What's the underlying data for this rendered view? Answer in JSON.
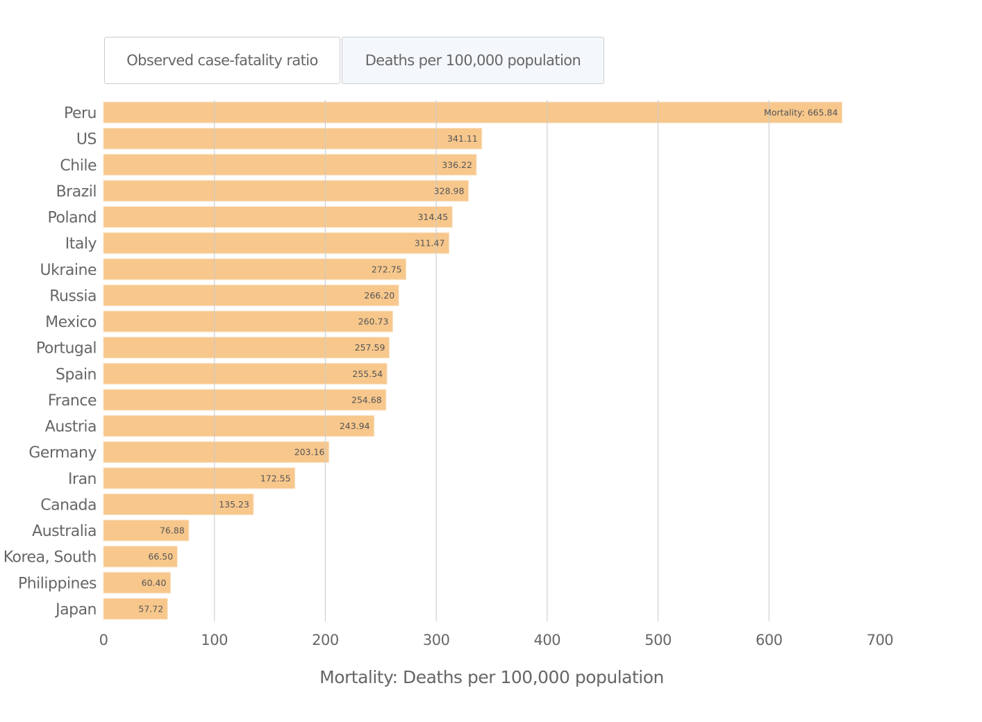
{
  "toggle": {
    "options": [
      "Observed case-fatality ratio",
      "Deaths per 100,000 population"
    ],
    "selected": "Deaths per 100,000 population"
  },
  "colors": {
    "bar": "#f7c78c",
    "bar_edge": "#fbe2c3",
    "grid": "#cccccc",
    "text": "#666666"
  },
  "chart_data": {
    "type": "bar",
    "orientation": "horizontal",
    "title": "",
    "xlabel": "Mortality: Deaths per 100,000 population",
    "ylabel": "",
    "xlim": [
      0,
      700
    ],
    "xticks": [
      0,
      100,
      200,
      300,
      400,
      500,
      600,
      700
    ],
    "grid": true,
    "categories": [
      "Peru",
      "US",
      "Chile",
      "Brazil",
      "Poland",
      "Italy",
      "Ukraine",
      "Russia",
      "Mexico",
      "Portugal",
      "Spain",
      "France",
      "Austria",
      "Germany",
      "Iran",
      "Canada",
      "Australia",
      "Korea, South",
      "Philippines",
      "Japan"
    ],
    "values": [
      665.84,
      341.11,
      336.22,
      328.98,
      314.45,
      311.47,
      272.75,
      266.2,
      260.73,
      257.59,
      255.54,
      254.68,
      243.94,
      203.16,
      172.55,
      135.23,
      76.88,
      66.5,
      60.4,
      57.72
    ],
    "value_labels": [
      "Mortality: 665.84",
      "341.11",
      "336.22",
      "328.98",
      "314.45",
      "311.47",
      "272.75",
      "266.20",
      "260.73",
      "257.59",
      "255.54",
      "254.68",
      "243.94",
      "203.16",
      "172.55",
      "135.23",
      "76.88",
      "66.50",
      "60.40",
      "57.72"
    ]
  }
}
